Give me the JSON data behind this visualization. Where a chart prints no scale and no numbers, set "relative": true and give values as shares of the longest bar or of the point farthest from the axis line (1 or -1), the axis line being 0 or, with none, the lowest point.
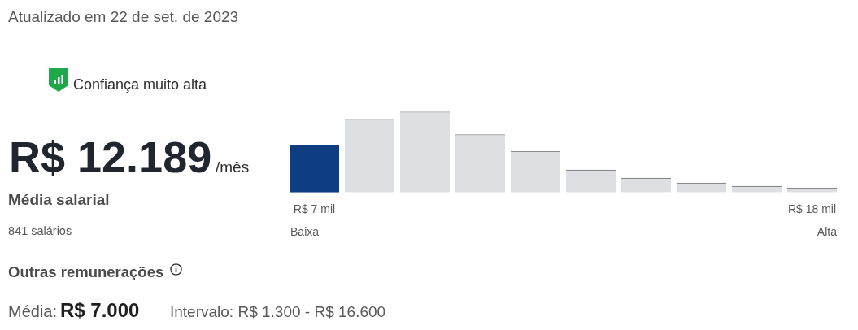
{
  "chart_data": {
    "type": "bar",
    "relative": true,
    "categories": [
      "R$ 7 mil",
      null,
      null,
      null,
      null,
      null,
      null,
      null,
      null,
      "R$ 18 mil"
    ],
    "values": [
      0.58,
      0.91,
      1,
      0.72,
      0.51,
      0.28,
      0.18,
      0.12,
      0.08,
      0.06
    ],
    "colors": [
      "#0e3d81",
      "#dedfe3",
      "#dedfe3",
      "#dedfe3",
      "#dedfe3",
      "#dedfe3",
      "#dedfe3",
      "#dedfe3",
      "#dedfe3",
      "#dedfe3"
    ],
    "annotations": [
      "Atualizado em 22 de set. de 2023",
      "Confiança muito alta",
      "R$ 12.189",
      "/mês",
      "Média salarial",
      "841 salários",
      "Outras remunerações",
      "Média:",
      "R$ 7.000",
      "Intervalo: R$ 1.300 - R$ 16.600",
      "Baixa",
      "Alta"
    ]
  }
}
